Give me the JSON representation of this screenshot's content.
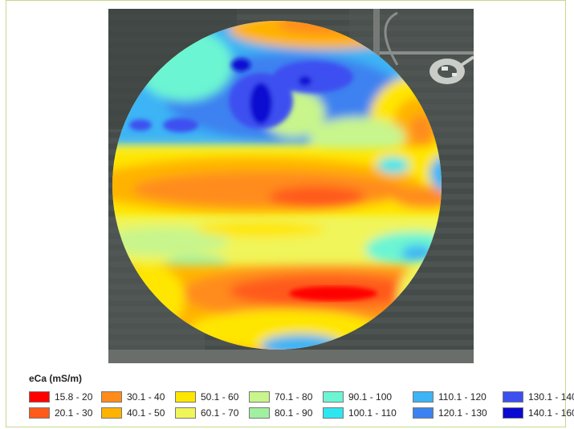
{
  "legend": {
    "title": "eCa (mS/m)",
    "items": [
      {
        "label": "15.8 - 20",
        "color": "#ff0000"
      },
      {
        "label": "20.1 - 30",
        "color": "#ff5a1a"
      },
      {
        "label": "30.1 - 40",
        "color": "#ff8c1a"
      },
      {
        "label": "40.1 - 50",
        "color": "#ffb300"
      },
      {
        "label": "50.1 - 60",
        "color": "#ffe600"
      },
      {
        "label": "60.1 - 70",
        "color": "#f0f55a"
      },
      {
        "label": "70.1 - 80",
        "color": "#c8f58c"
      },
      {
        "label": "80.1 - 90",
        "color": "#a0f0a0"
      },
      {
        "label": "90.1 - 100",
        "color": "#6cf5d2"
      },
      {
        "label": "100.1 - 110",
        "color": "#2ee6f0"
      },
      {
        "label": "110.1 - 120",
        "color": "#3cb4f5"
      },
      {
        "label": "120.1 - 130",
        "color": "#3c82f0"
      },
      {
        "label": "130.1 - 140",
        "color": "#3c50f0"
      },
      {
        "label": "140.1 - 160",
        "color": "#0a0ad2"
      }
    ]
  },
  "map": {
    "background_color": "#4a5050",
    "field_shape": "circle (center-pivot field)"
  }
}
